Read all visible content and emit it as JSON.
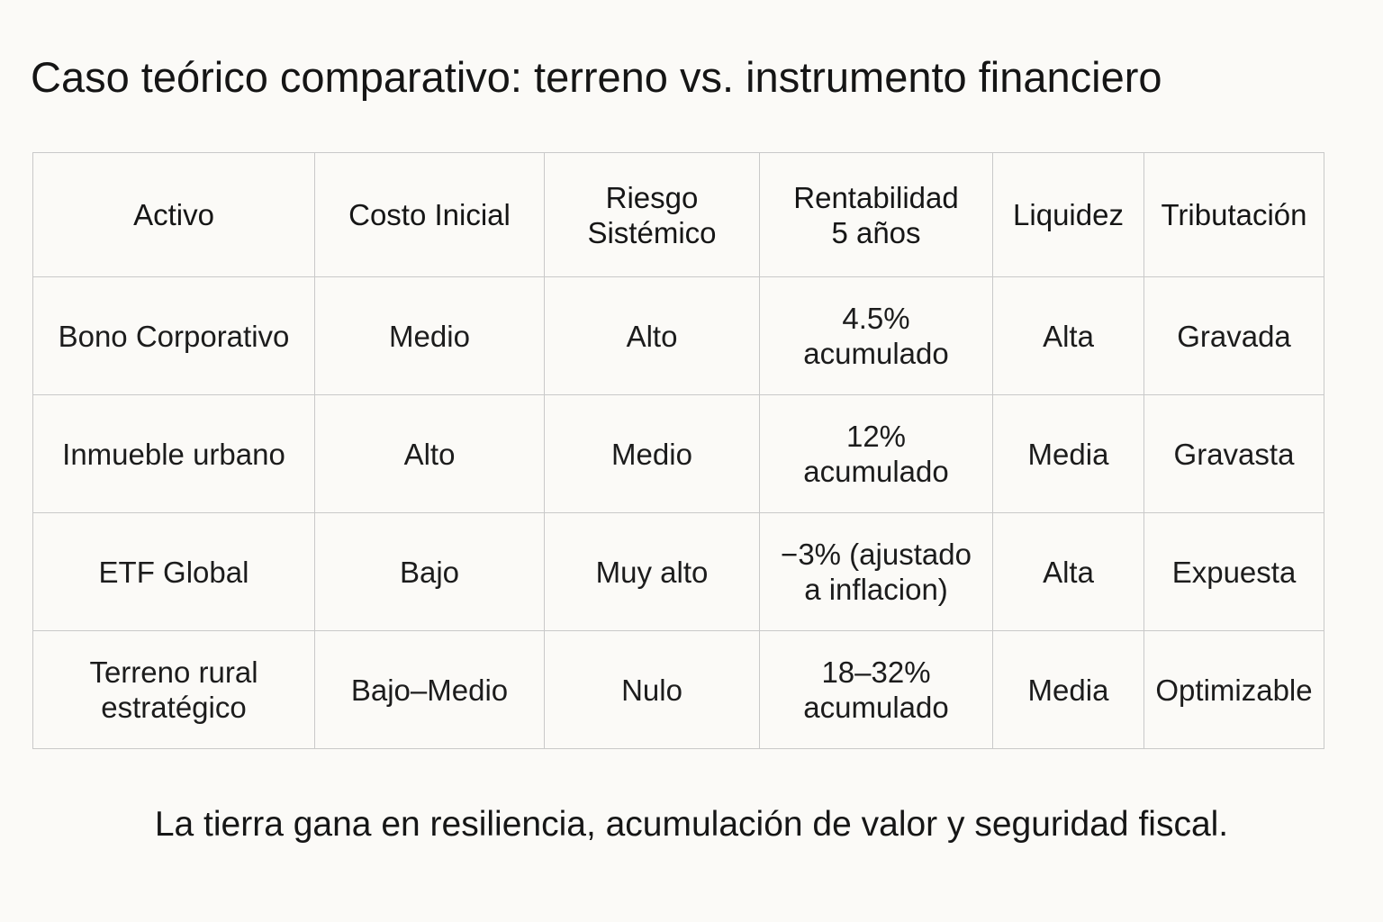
{
  "title": "Caso teórico comparativo: terreno vs. instrumento financiero",
  "table": {
    "headers": [
      [
        "Activo"
      ],
      [
        "Costo Inicial"
      ],
      [
        "Riesgo",
        "Sistémico"
      ],
      [
        "Rentabilidad",
        "5 años"
      ],
      [
        "Liquidez"
      ],
      [
        "Tributación"
      ]
    ],
    "rows": [
      {
        "activo": [
          "Bono Corporativo"
        ],
        "costo": [
          "Medio"
        ],
        "riesgo": [
          "Alto"
        ],
        "rentabilidad": [
          "4.5%",
          "acumulado"
        ],
        "liquidez": [
          "Alta"
        ],
        "tributacion": [
          "Gravada"
        ]
      },
      {
        "activo": [
          "Inmueble urbano"
        ],
        "costo": [
          "Alto"
        ],
        "riesgo": [
          "Medio"
        ],
        "rentabilidad": [
          "12%",
          "acumulado"
        ],
        "liquidez": [
          "Media"
        ],
        "tributacion": [
          "Gravasta"
        ]
      },
      {
        "activo": [
          "ETF Global"
        ],
        "costo": [
          "Bajo"
        ],
        "riesgo": [
          "Muy alto"
        ],
        "rentabilidad": [
          "−3% (ajustado",
          "a inflacion)"
        ],
        "liquidez": [
          "Alta"
        ],
        "tributacion": [
          "Expuesta"
        ]
      },
      {
        "activo": [
          "Terreno rural",
          "estratégico"
        ],
        "costo": [
          "Bajo–Medio"
        ],
        "riesgo": [
          "Nulo"
        ],
        "rentabilidad": [
          "18–32%",
          "acumulado"
        ],
        "liquidez": [
          "Media"
        ],
        "tributacion": [
          "Optimizable"
        ]
      }
    ]
  },
  "conclusion": "La tierra gana en resiliencia, acumulación de valor y seguridad fiscal."
}
